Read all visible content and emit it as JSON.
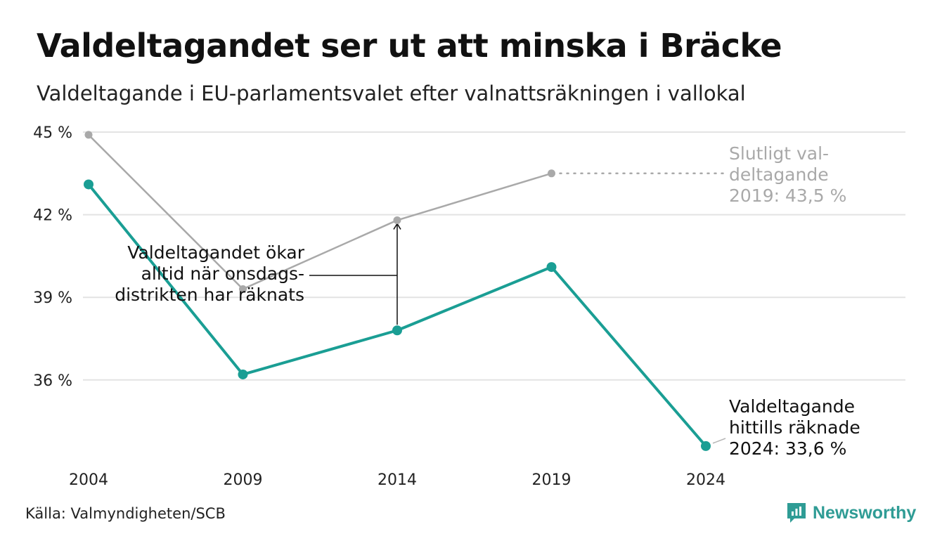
{
  "title": "Valdeltagandet ser ut att minska i Bräcke",
  "subtitle": "Valdeltagande i EU-parlamentsvalet efter valnattsräkningen i vallokal",
  "source": "Källa: Valmyndigheten/SCB",
  "brand": {
    "name": "Newsworthy",
    "icon": "newsworthy-logo-icon",
    "color": "#2f9c95"
  },
  "colors": {
    "counted": "#1a9e94",
    "final": "#a9a9a9",
    "grid": "#e3e3e3",
    "annotation": "#111111"
  },
  "annotations": {
    "final_2019": [
      "Slutligt val-",
      "deltagande",
      "2019: 43,5 %"
    ],
    "counted_2024": [
      "Valdeltagande",
      "hittills räknade",
      "2024: 33,6 %"
    ],
    "wednesday": [
      "Valdeltagandet ökar",
      "alltid när onsdags-",
      "distrikten har räknats"
    ]
  },
  "chart_data": {
    "type": "line",
    "title": "Valdeltagandet ser ut att minska i Bräcke",
    "subtitle": "Valdeltagande i EU-parlamentsvalet efter valnattsräkningen i vallokal",
    "xlabel": "",
    "ylabel": "",
    "x": [
      2004,
      2009,
      2014,
      2019,
      2024
    ],
    "x_tick_labels": [
      "2004",
      "2009",
      "2014",
      "2019",
      "2024"
    ],
    "y_ticks": [
      36,
      39,
      42,
      45
    ],
    "y_tick_labels": [
      "36 %",
      "39 %",
      "42 %",
      "45 %"
    ],
    "ylim": [
      33.6,
      45
    ],
    "grid": "horizontal",
    "legend": "none (direct labels)",
    "series": [
      {
        "key": "final",
        "values": [
          44.9,
          39.3,
          41.8,
          43.5,
          null
        ],
        "color": "#a9a9a9"
      },
      {
        "key": "counted",
        "values": [
          43.1,
          36.2,
          37.8,
          40.1,
          33.6
        ],
        "color": "#1a9e94"
      }
    ]
  }
}
